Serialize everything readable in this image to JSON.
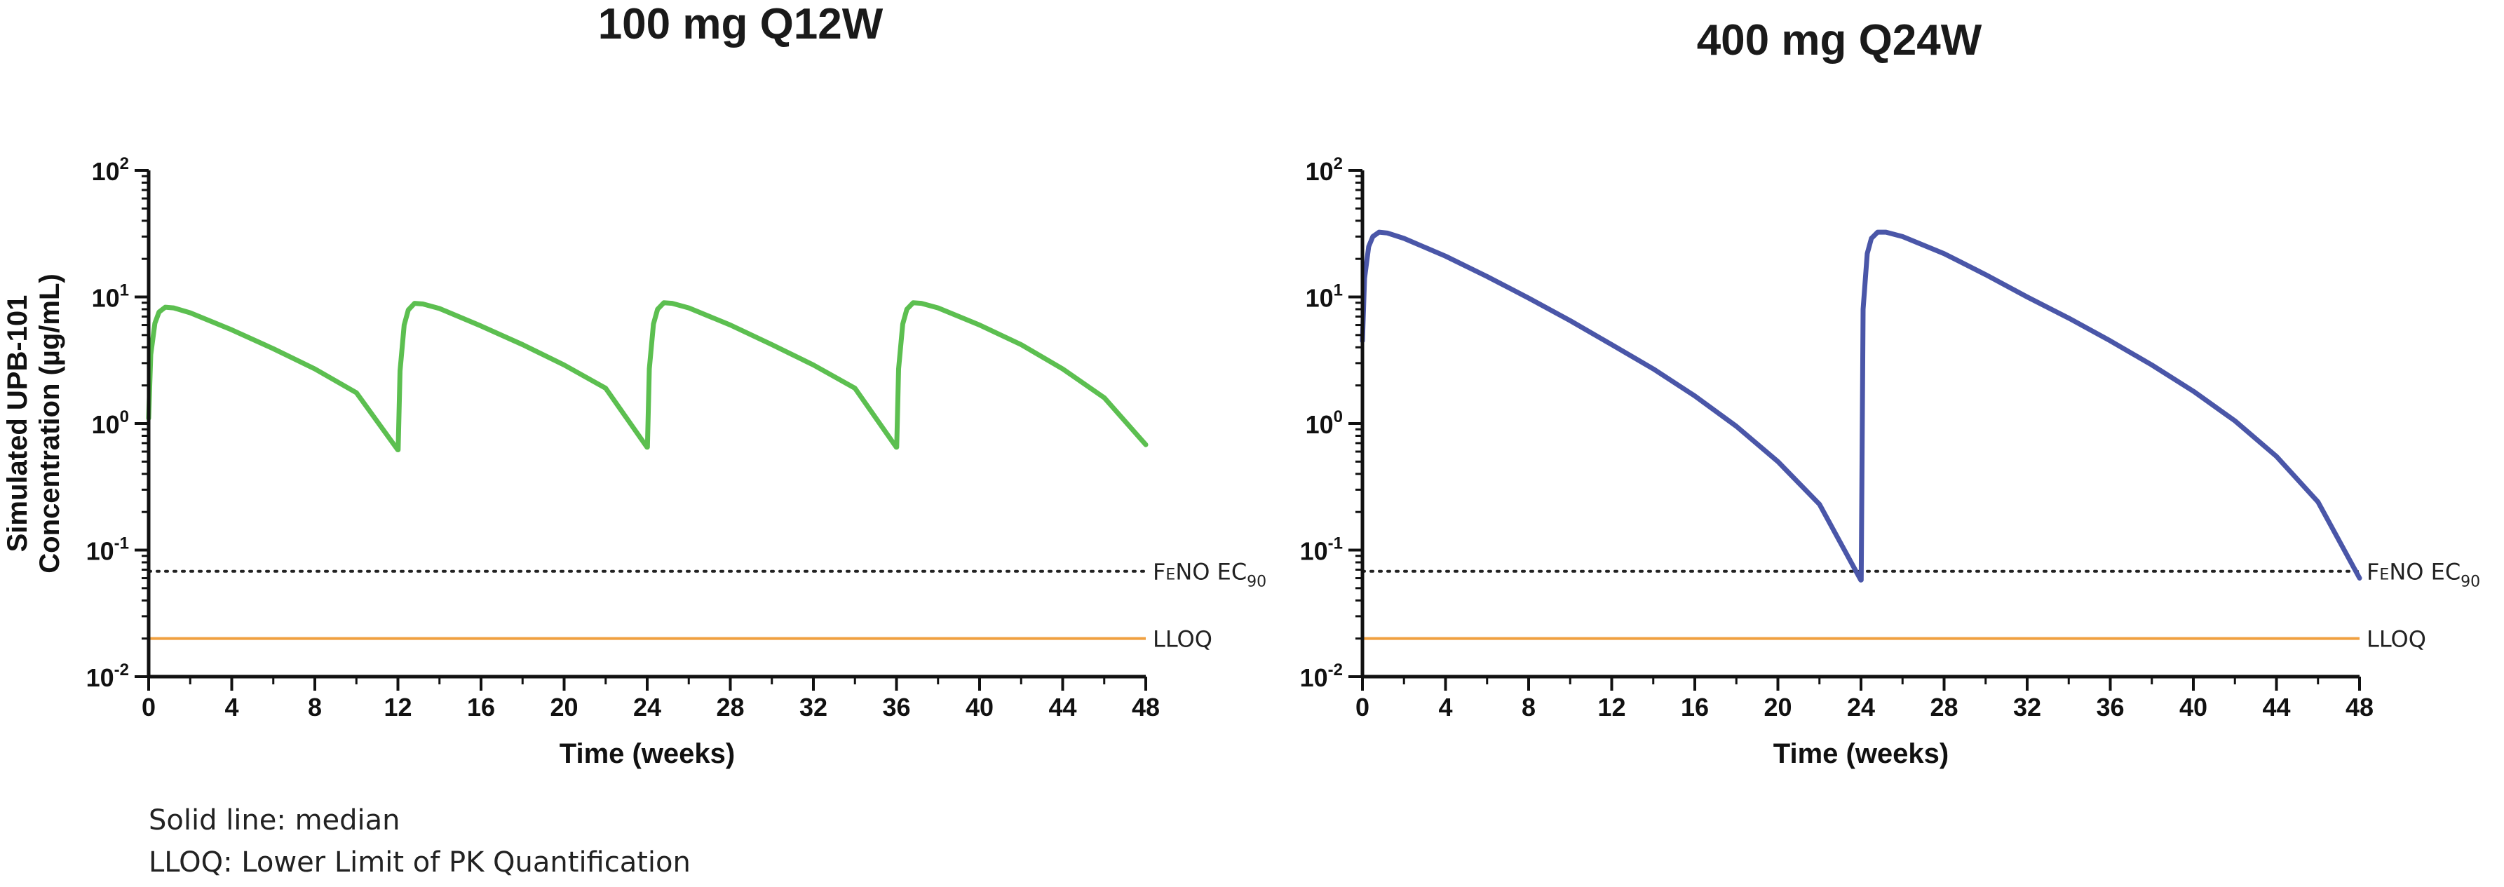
{
  "chart_data": [
    {
      "type": "line",
      "title": "100 mg Q12W",
      "xlabel": "Time (weeks)",
      "ylabel_lines": [
        "Simulated UPB-101",
        "Concentration (µg/mL)"
      ],
      "yscale": "log",
      "xlim": [
        0,
        48
      ],
      "ylim": [
        0.01,
        100
      ],
      "x_ticks": [
        0,
        4,
        8,
        12,
        16,
        20,
        24,
        28,
        32,
        36,
        40,
        44,
        48
      ],
      "y_ticks": [
        {
          "value": 100,
          "base": "10",
          "exp": "2"
        },
        {
          "value": 10,
          "base": "10",
          "exp": "1"
        },
        {
          "value": 1,
          "base": "10",
          "exp": "0"
        },
        {
          "value": 0.1,
          "base": "10",
          "exp": "-1"
        },
        {
          "value": 0.01,
          "base": "10",
          "exp": "-2"
        }
      ],
      "series": [
        {
          "name": "median",
          "color": "#5cbf50",
          "x": [
            0,
            0.1,
            0.3,
            0.5,
            0.8,
            1.2,
            2,
            4,
            6,
            8,
            10,
            11.99,
            12.01,
            12.1,
            12.3,
            12.5,
            12.8,
            13.2,
            14,
            16,
            18,
            20,
            22,
            23.99,
            24.01,
            24.1,
            24.3,
            24.5,
            24.8,
            25.2,
            26,
            28,
            30,
            32,
            34,
            35.99,
            36.01,
            36.1,
            36.3,
            36.5,
            36.8,
            37.2,
            38,
            40,
            42,
            44,
            46,
            48
          ],
          "y": [
            1.1,
            3.5,
            6.2,
            7.6,
            8.3,
            8.2,
            7.5,
            5.5,
            3.9,
            2.7,
            1.75,
            0.62,
            0.62,
            2.6,
            6.0,
            7.9,
            8.9,
            8.8,
            8.1,
            5.9,
            4.2,
            2.9,
            1.9,
            0.65,
            0.65,
            2.7,
            6.1,
            8.0,
            9.0,
            8.9,
            8.2,
            6.0,
            4.2,
            2.9,
            1.9,
            0.65,
            0.65,
            2.7,
            6.1,
            8.0,
            9.0,
            8.9,
            8.2,
            6.0,
            4.2,
            2.7,
            1.6,
            0.68
          ]
        }
      ],
      "reference_lines": [
        {
          "label": "FeNO EC90",
          "label_main": "F",
          "label_small": "E",
          "label_rest": "NO EC",
          "label_sub": "90",
          "y": 0.068,
          "style": "dotted",
          "color": "#222222"
        },
        {
          "label": "LLOQ",
          "y": 0.02,
          "style": "solid",
          "color": "#f0a040"
        }
      ]
    },
    {
      "type": "line",
      "title": "400 mg Q24W",
      "xlabel": "Time (weeks)",
      "yscale": "log",
      "xlim": [
        0,
        48
      ],
      "ylim": [
        0.01,
        100
      ],
      "x_ticks": [
        0,
        4,
        8,
        12,
        16,
        20,
        24,
        28,
        32,
        36,
        40,
        44,
        48
      ],
      "y_ticks": [
        {
          "value": 100,
          "base": "10",
          "exp": "2"
        },
        {
          "value": 10,
          "base": "10",
          "exp": "1"
        },
        {
          "value": 1,
          "base": "10",
          "exp": "0"
        },
        {
          "value": 0.1,
          "base": "10",
          "exp": "-1"
        },
        {
          "value": 0.01,
          "base": "10",
          "exp": "-2"
        }
      ],
      "series": [
        {
          "name": "median",
          "color": "#4a56a8",
          "x": [
            0,
            0.1,
            0.3,
            0.5,
            0.8,
            1.2,
            2,
            4,
            6,
            8,
            10,
            12,
            14,
            16,
            18,
            20,
            22,
            23.99,
            24.01,
            24.1,
            24.3,
            24.5,
            24.8,
            25.2,
            26,
            28,
            30,
            32,
            34,
            36,
            38,
            40,
            42,
            44,
            46,
            48
          ],
          "y": [
            4.5,
            14,
            25,
            30,
            32.5,
            32,
            29,
            21,
            14.5,
            9.8,
            6.5,
            4.2,
            2.7,
            1.65,
            0.95,
            0.5,
            0.23,
            0.058,
            0.058,
            8,
            22,
            29,
            32.5,
            32.5,
            30,
            22,
            15,
            10,
            6.8,
            4.5,
            2.9,
            1.8,
            1.05,
            0.55,
            0.24,
            0.06
          ]
        }
      ],
      "reference_lines": [
        {
          "label": "FeNO EC90",
          "label_main": "F",
          "label_small": "E",
          "label_rest": "NO EC",
          "label_sub": "90",
          "y": 0.068,
          "style": "dotted",
          "color": "#222222"
        },
        {
          "label": "LLOQ",
          "y": 0.02,
          "style": "solid",
          "color": "#f0a040"
        }
      ]
    }
  ],
  "footnotes": {
    "line1": "Solid line: median",
    "line2": "LLOQ: Lower Limit of PK Quantification"
  }
}
